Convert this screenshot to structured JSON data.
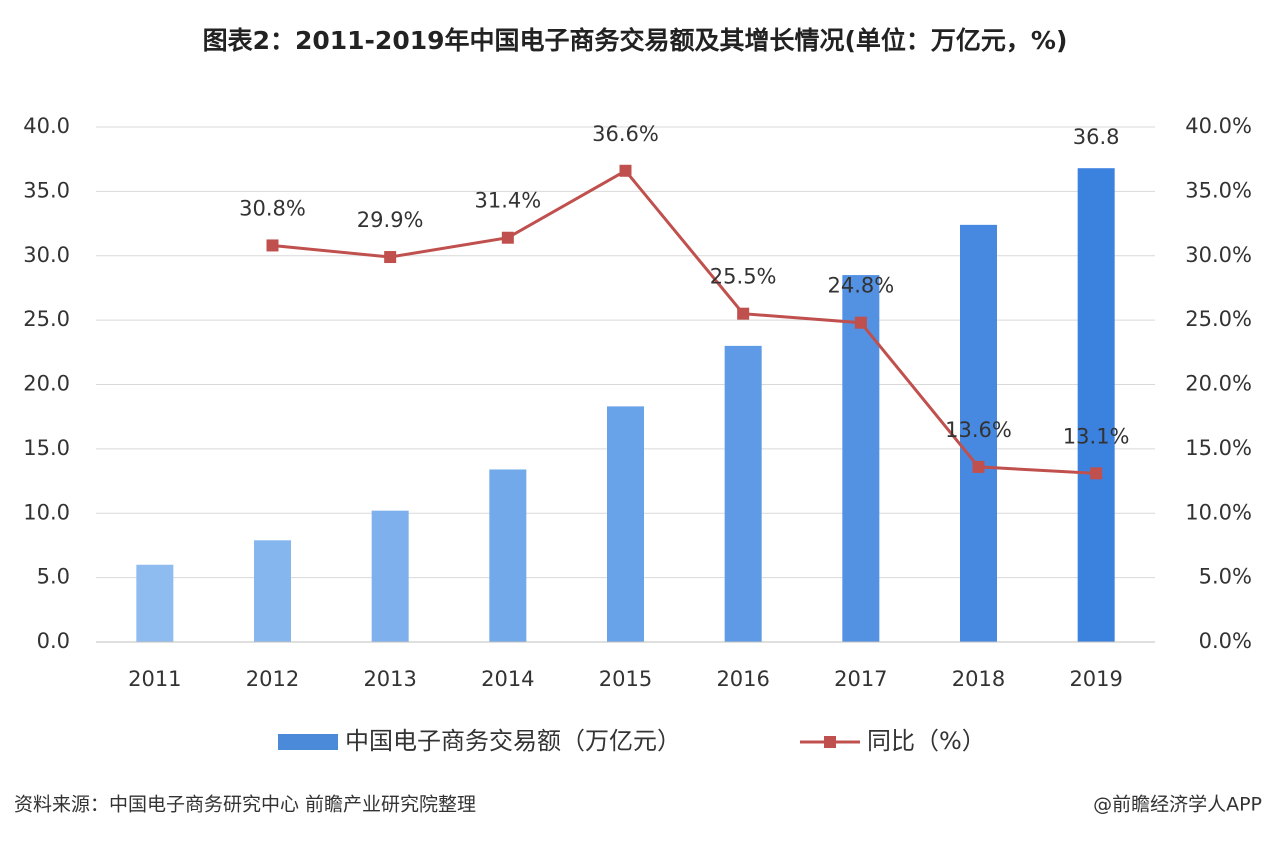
{
  "chart_data": {
    "type": "bar-line",
    "title": "图表2：2011-2019年中国电子商务交易额及其增长情况(单位：万亿元，%)",
    "categories": [
      "2011",
      "2012",
      "2013",
      "2014",
      "2015",
      "2016",
      "2017",
      "2018",
      "2019"
    ],
    "series": [
      {
        "name": "中国电子商务交易额（万亿元）",
        "type": "bar",
        "color": "#4a8ad8",
        "colors": [
          "#8fbcf0",
          "#86b6ee",
          "#7db0ec",
          "#72a9ea",
          "#68a2e8",
          "#5e9ae5",
          "#5391e3",
          "#4789e1",
          "#3b82df"
        ],
        "values": [
          6.0,
          7.9,
          10.2,
          13.4,
          18.3,
          23.0,
          28.5,
          32.4,
          36.8
        ],
        "value_labels": [
          null,
          null,
          null,
          null,
          null,
          null,
          null,
          null,
          "36.8"
        ]
      },
      {
        "name": "同比（%）",
        "type": "line",
        "axis": "y2",
        "color": "#c0504d",
        "values": [
          null,
          30.8,
          29.9,
          31.4,
          36.6,
          25.5,
          24.8,
          13.6,
          13.1
        ],
        "value_labels": [
          null,
          "30.8%",
          "29.9%",
          "31.4%",
          "36.6%",
          "25.5%",
          "24.8%",
          "13.6%",
          "13.1%"
        ]
      }
    ],
    "ylim": [
      0,
      40
    ],
    "yticks": [
      {
        "value": 0,
        "label": "0.0"
      },
      {
        "value": 5,
        "label": "5.0"
      },
      {
        "value": 10,
        "label": "10.0"
      },
      {
        "value": 15,
        "label": "15.0"
      },
      {
        "value": 20,
        "label": "20.0"
      },
      {
        "value": 25,
        "label": "25.0"
      },
      {
        "value": 30,
        "label": "30.0"
      },
      {
        "value": 35,
        "label": "35.0"
      },
      {
        "value": 40,
        "label": "40.0"
      }
    ],
    "y2lim": [
      0,
      40
    ],
    "y2ticks": [
      {
        "value": 0,
        "label": "0.0%"
      },
      {
        "value": 5,
        "label": "5.0%"
      },
      {
        "value": 10,
        "label": "10.0%"
      },
      {
        "value": 15,
        "label": "15.0%"
      },
      {
        "value": 20,
        "label": "20.0%"
      },
      {
        "value": 25,
        "label": "25.0%"
      },
      {
        "value": 30,
        "label": "30.0%"
      },
      {
        "value": 35,
        "label": "35.0%"
      },
      {
        "value": 40,
        "label": "40.0%"
      }
    ],
    "grid": true,
    "legend": "bottom",
    "source": "资料来源：中国电子商务研究中心 前瞻产业研究院整理",
    "credit": "@前瞻经济学人APP"
  }
}
